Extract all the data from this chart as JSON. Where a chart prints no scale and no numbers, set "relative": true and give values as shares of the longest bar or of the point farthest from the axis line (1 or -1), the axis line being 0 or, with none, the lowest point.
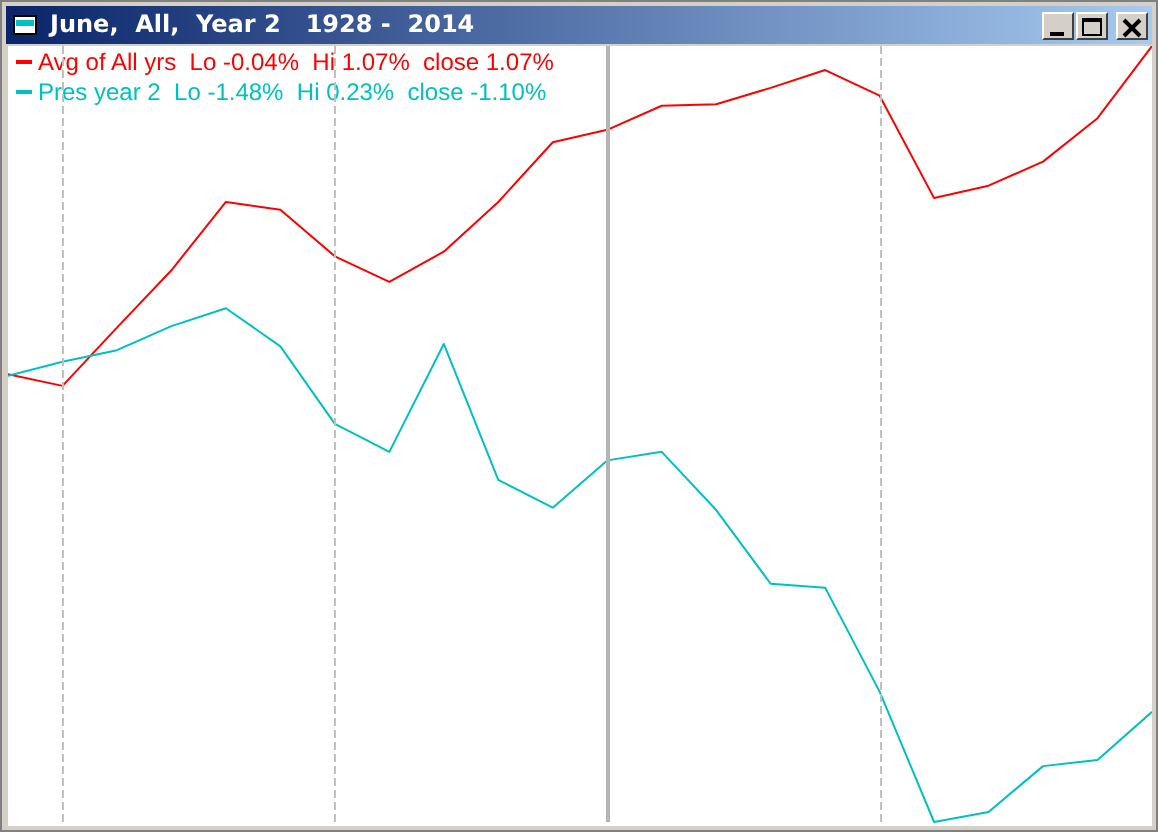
{
  "chart_data": {
    "type": "line",
    "title": "June,  All,  Year 2   1928 -  2014",
    "relative": true,
    "categories": [
      null,
      null,
      null,
      null,
      null,
      null,
      null,
      null,
      null,
      null,
      null,
      null,
      null,
      null,
      null,
      null,
      null,
      null,
      null,
      null,
      null,
      null
    ],
    "series": [
      {
        "name": "Avg of All yrs  Lo -0.04%  Hi 1.07%  close 1.07%",
        "color": "#ff0000",
        "values": [
          0.577,
          0.562,
          0.637,
          0.711,
          0.799,
          0.789,
          0.729,
          0.696,
          0.735,
          0.799,
          0.876,
          0.892,
          0.923,
          0.925,
          0.946,
          0.969,
          0.936,
          0.804,
          0.82,
          0.851,
          0.907,
          1
        ]
      },
      {
        "name": "Pres year 2  Lo -1.48%  Hi 0.23%  close -1.10%",
        "color": "#00c0c0",
        "values": [
          0.575,
          0.593,
          0.608,
          0.639,
          0.662,
          0.613,
          0.513,
          0.477,
          0.616,
          0.441,
          0.405,
          0.466,
          0.477,
          0.402,
          0.307,
          0.302,
          0.168,
          0,
          0.013,
          0.072,
          0.08,
          0.142
        ]
      }
    ],
    "legend": "top left",
    "marker": "none",
    "line_style": "solid",
    "grid": "x",
    "tick_labels": false
  }
}
